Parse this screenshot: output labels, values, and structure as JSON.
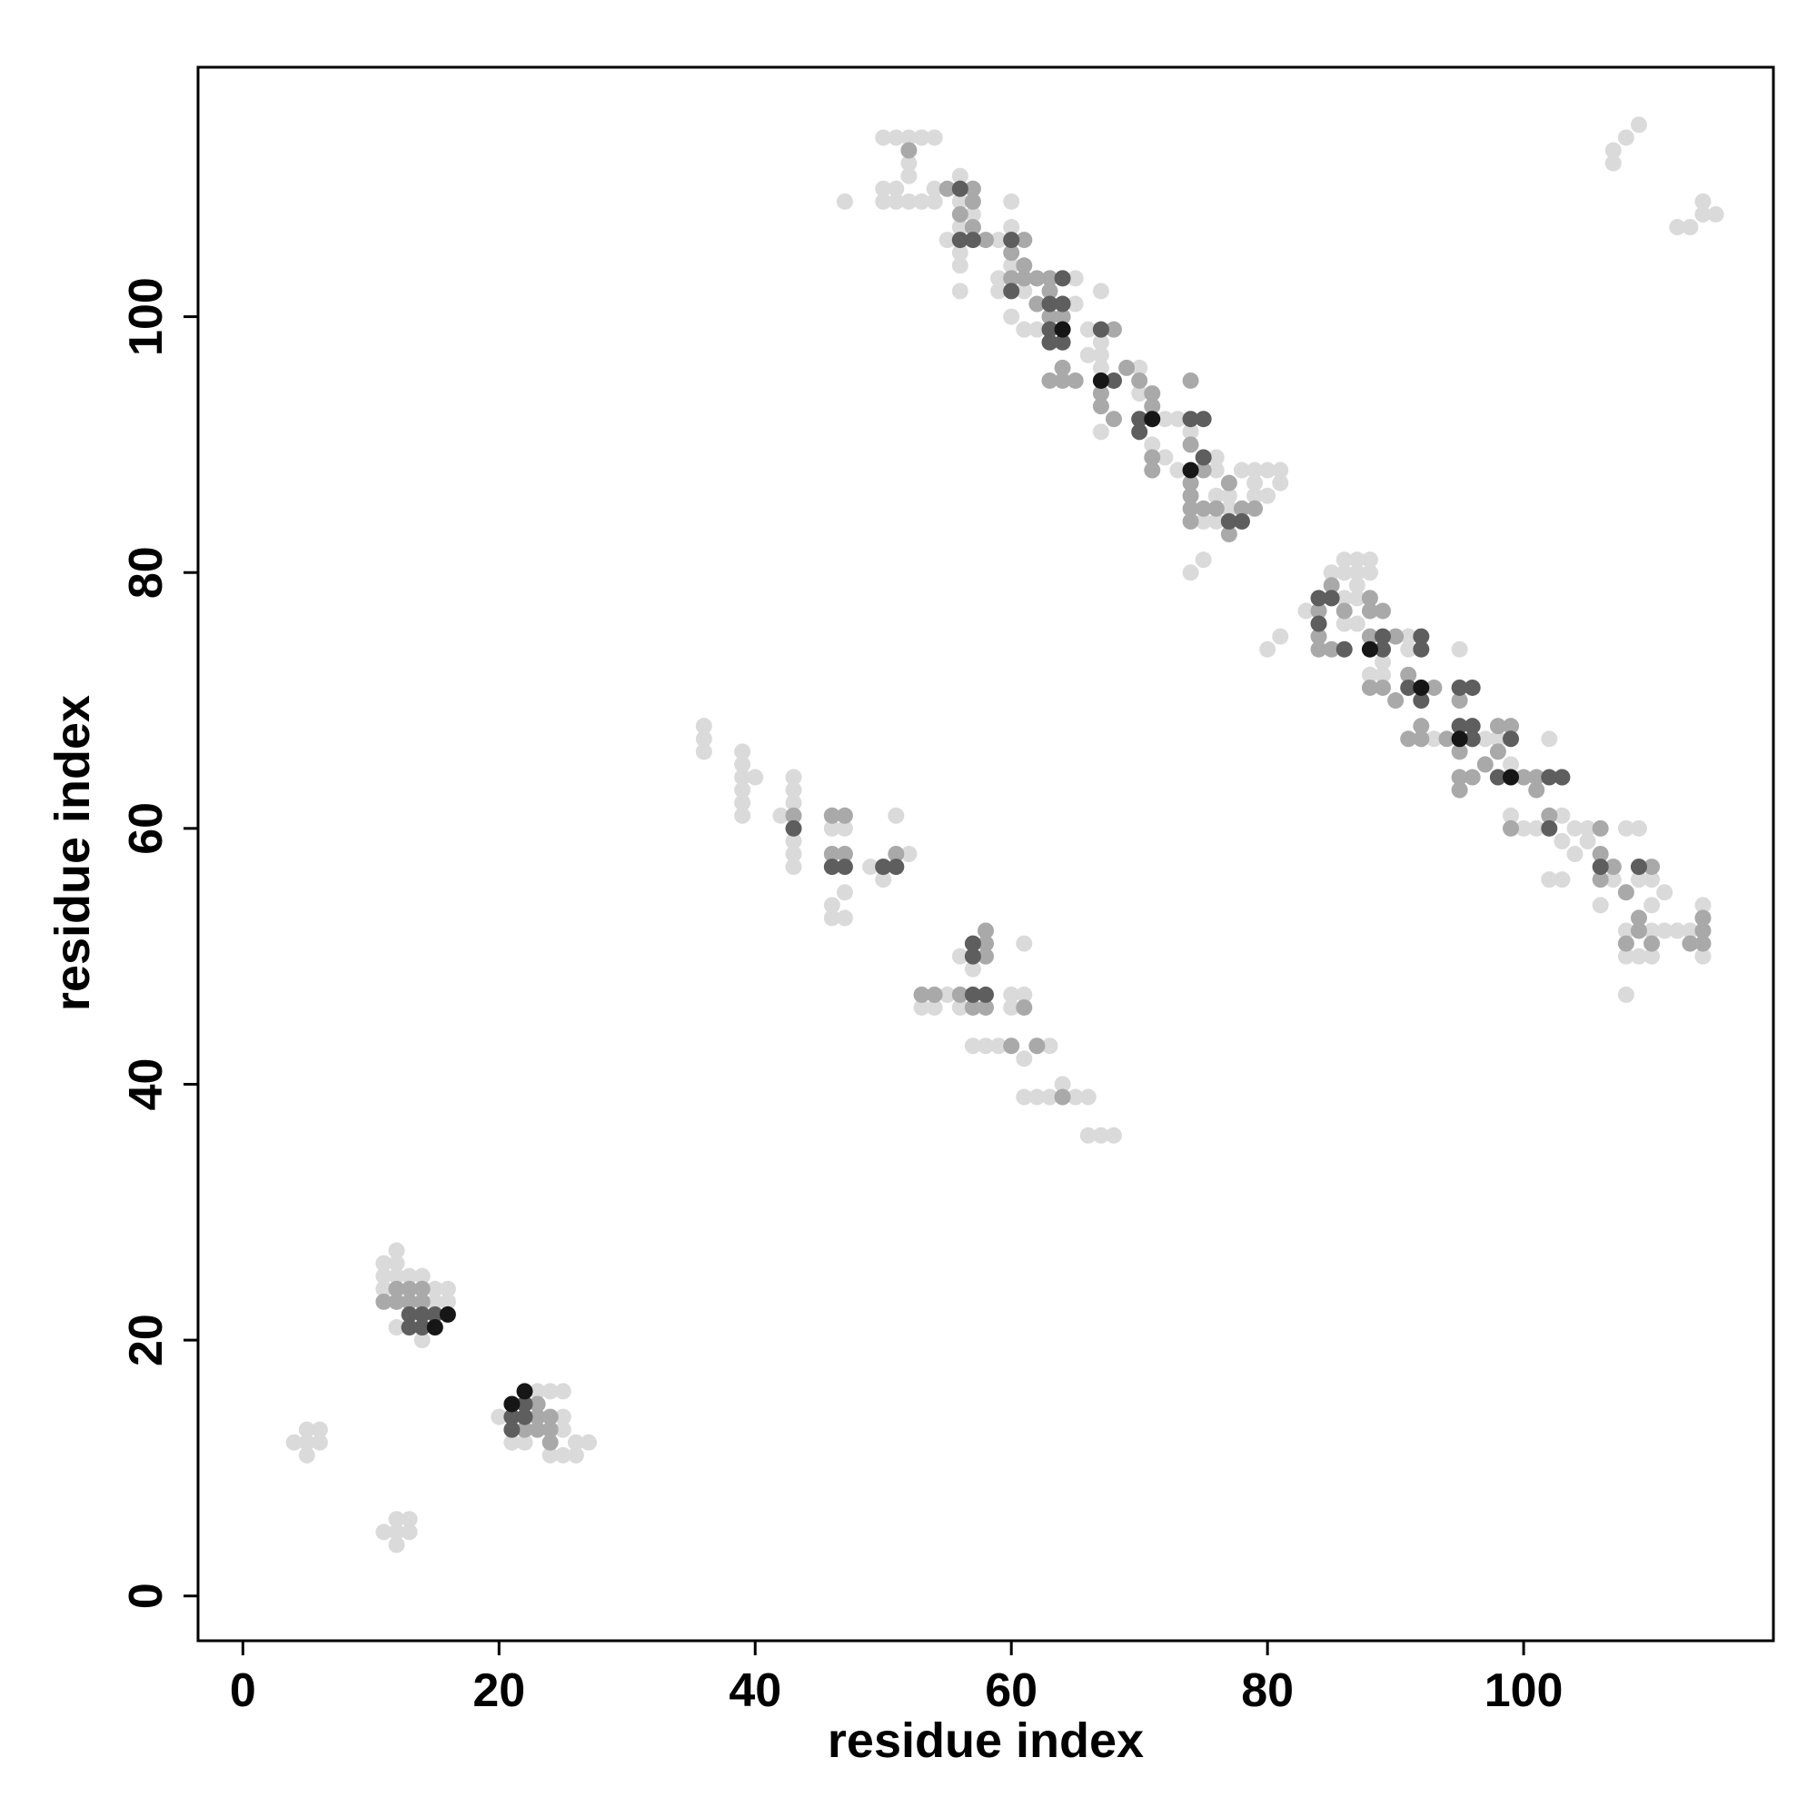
{
  "chart_data": {
    "type": "scatter",
    "xlabel": "residue index",
    "ylabel": "residue index",
    "xlim": [
      -3.5,
      119.5
    ],
    "ylim": [
      -3.5,
      119.5
    ],
    "xticks": [
      0,
      20,
      40,
      60,
      80,
      100
    ],
    "yticks": [
      0,
      20,
      40,
      60,
      80,
      100
    ],
    "series": [
      {
        "color": "#dadada",
        "x": [
          4,
          5,
          6,
          5,
          6,
          5,
          11,
          12,
          13,
          12,
          13,
          12,
          11,
          12,
          11,
          12,
          11,
          15,
          16,
          15,
          16,
          12,
          14,
          13,
          14,
          12,
          20,
          21,
          22,
          24,
          25,
          25,
          26,
          26,
          27,
          24,
          23,
          25,
          25,
          36,
          36,
          36,
          39,
          39,
          39,
          40,
          39,
          39,
          39,
          42,
          43,
          43,
          43,
          43,
          43,
          43,
          46,
          46,
          47,
          46,
          47,
          46,
          47,
          49,
          50,
          51,
          52,
          55,
          56,
          54,
          53,
          57,
          56,
          60,
          61,
          60,
          61,
          57,
          58,
          59,
          60,
          61,
          62,
          63,
          61,
          62,
          63,
          64,
          66,
          66,
          67,
          68,
          65,
          47,
          50,
          51,
          52,
          53,
          54,
          50,
          51,
          52,
          52,
          50,
          51,
          52,
          53,
          54,
          54,
          56,
          56,
          56,
          56,
          55,
          56,
          56,
          57,
          59,
          59,
          60,
          60,
          59,
          60,
          60,
          61,
          61,
          61,
          62,
          65,
          65,
          66,
          67,
          67,
          67,
          67,
          66,
          70,
          67,
          70,
          72,
          73,
          71,
          72,
          73,
          74,
          76,
          76,
          76,
          77,
          77,
          78,
          79,
          79,
          80,
          81,
          81,
          80,
          79,
          75,
          76,
          74,
          75,
          80,
          81,
          83,
          85,
          86,
          87,
          88,
          86,
          87,
          88,
          87,
          86,
          87,
          86,
          87,
          89,
          89,
          88,
          91,
          91,
          93,
          95,
          97,
          98,
          99,
          99,
          100,
          101,
          102,
          103,
          102,
          103,
          104,
          105,
          106,
          107,
          108,
          109,
          109,
          110,
          108,
          108,
          109,
          110,
          110,
          111,
          112,
          113,
          114,
          114,
          108,
          111,
          110,
          103,
          104,
          105,
          107,
          107,
          108,
          109,
          107,
          112,
          113,
          114,
          115,
          114
        ],
        "values": [
          12,
          12,
          12,
          13,
          13,
          11,
          5,
          5,
          5,
          6,
          6,
          4,
          26,
          27,
          25,
          26,
          24,
          24,
          24,
          23,
          23,
          21,
          20,
          25,
          25,
          25,
          14,
          12,
          12,
          16,
          16,
          11,
          11,
          12,
          12,
          11,
          16,
          13,
          14,
          68,
          67,
          66,
          66,
          65,
          64,
          64,
          63,
          62,
          61,
          61,
          64,
          63,
          62,
          59,
          58,
          57,
          61,
          60,
          60,
          54,
          55,
          53,
          53,
          57,
          56,
          61,
          58,
          47,
          46,
          46,
          46,
          49,
          50,
          47,
          51,
          46,
          47,
          43,
          43,
          43,
          43,
          42,
          43,
          43,
          39,
          39,
          39,
          40,
          39,
          36,
          36,
          36,
          39,
          109,
          114,
          114,
          114,
          114,
          114,
          110,
          110,
          112,
          111,
          109,
          109,
          109,
          109,
          109,
          110,
          111,
          109,
          107,
          105,
          106,
          104,
          102,
          108,
          103,
          102,
          109,
          107,
          106,
          104,
          100,
          99,
          103,
          102,
          99,
          103,
          101,
          99,
          102,
          98,
          97,
          96,
          97,
          96,
          91,
          94,
          92,
          92,
          90,
          89,
          88,
          91,
          89,
          88,
          86,
          86,
          85,
          88,
          88,
          87,
          88,
          88,
          87,
          86,
          86,
          84,
          84,
          80,
          81,
          74,
          75,
          77,
          80,
          81,
          81,
          81,
          80,
          80,
          80,
          79,
          78,
          78,
          76,
          76,
          73,
          72,
          72,
          75,
          74,
          67,
          74,
          67,
          67,
          65,
          61,
          60,
          60,
          56,
          56,
          67,
          61,
          60,
          59,
          54,
          57,
          60,
          60,
          56,
          56,
          52,
          50,
          50,
          50,
          52,
          52,
          52,
          52,
          54,
          50,
          47,
          55,
          54,
          59,
          58,
          60,
          56,
          113,
          114,
          115,
          112,
          107,
          107,
          108,
          108,
          109
        ]
      },
      {
        "color": "#a9a9a9",
        "x": [
          12,
          13,
          14,
          12,
          13,
          14,
          11,
          23,
          23,
          24,
          24,
          23,
          24,
          22,
          43,
          46,
          47,
          46,
          47,
          50,
          51,
          53,
          54,
          58,
          58,
          58,
          56,
          57,
          58,
          61,
          60,
          62,
          64,
          52,
          55,
          57,
          57,
          56,
          57,
          58,
          60,
          61,
          60,
          61,
          60,
          61,
          62,
          63,
          63,
          63,
          64,
          62,
          63,
          64,
          64,
          65,
          67,
          67,
          68,
          68,
          69,
          70,
          71,
          71,
          74,
          71,
          71,
          74,
          75,
          74,
          75,
          74,
          74,
          76,
          77,
          77,
          78,
          77,
          79,
          74,
          84,
          84,
          85,
          86,
          84,
          85,
          88,
          88,
          89,
          88,
          90,
          88,
          89,
          90,
          91,
          91,
          92,
          92,
          93,
          94,
          95,
          96,
          95,
          95,
          96,
          95,
          97,
          98,
          98,
          99,
          100,
          101,
          101,
          99,
          102,
          103,
          106,
          106,
          106,
          107,
          109,
          110,
          108,
          109,
          108,
          109,
          110,
          113,
          114,
          114,
          114
        ],
        "values": [
          24,
          24,
          24,
          23,
          23,
          23,
          23,
          15,
          13,
          13,
          14,
          14,
          12,
          13,
          61,
          61,
          61,
          58,
          58,
          57,
          58,
          47,
          47,
          52,
          51,
          50,
          47,
          46,
          46,
          46,
          43,
          43,
          39,
          113,
          110,
          110,
          109,
          108,
          107,
          106,
          106,
          106,
          105,
          104,
          103,
          103,
          103,
          103,
          102,
          100,
          100,
          101,
          95,
          96,
          95,
          95,
          94,
          93,
          92,
          99,
          96,
          95,
          94,
          93,
          95,
          89,
          88,
          90,
          88,
          86,
          85,
          84,
          85,
          85,
          84,
          83,
          85,
          87,
          85,
          87,
          77,
          75,
          79,
          77,
          74,
          74,
          77,
          78,
          77,
          75,
          75,
          71,
          71,
          70,
          72,
          67,
          68,
          67,
          71,
          67,
          70,
          67,
          66,
          64,
          64,
          63,
          65,
          68,
          66,
          68,
          64,
          64,
          63,
          60,
          61,
          64,
          58,
          60,
          56,
          57,
          57,
          57,
          55,
          53,
          51,
          52,
          51,
          51,
          53,
          52,
          51
        ]
      },
      {
        "color": "#5e5e5e",
        "x": [
          13,
          14,
          15,
          13,
          14,
          21,
          22,
          21,
          22,
          43,
          46,
          47,
          50,
          51,
          57,
          57,
          57,
          58,
          56,
          56,
          57,
          60,
          60,
          63,
          63,
          64,
          63,
          64,
          64,
          67,
          68,
          70,
          70,
          74,
          75,
          75,
          77,
          78,
          84,
          85,
          84,
          86,
          89,
          89,
          91,
          92,
          92,
          92,
          95,
          96,
          95,
          96,
          96,
          98,
          99,
          102,
          103,
          102,
          106,
          109
        ],
        "values": [
          22,
          22,
          22,
          21,
          21,
          14,
          14,
          13,
          15,
          60,
          57,
          57,
          57,
          57,
          51,
          50,
          47,
          47,
          110,
          106,
          106,
          106,
          102,
          99,
          98,
          98,
          101,
          101,
          103,
          99,
          95,
          92,
          91,
          92,
          92,
          89,
          84,
          84,
          78,
          78,
          76,
          74,
          75,
          74,
          71,
          70,
          74,
          75,
          71,
          71,
          68,
          68,
          67,
          64,
          67,
          64,
          64,
          60,
          57,
          57
        ]
      },
      {
        "color": "#161616",
        "x": [
          15,
          16,
          21,
          22,
          64,
          67,
          71,
          74,
          88,
          92,
          95,
          99
        ],
        "values": [
          21,
          22,
          15,
          16,
          99,
          95,
          92,
          88,
          74,
          71,
          67,
          64
        ]
      }
    ]
  }
}
